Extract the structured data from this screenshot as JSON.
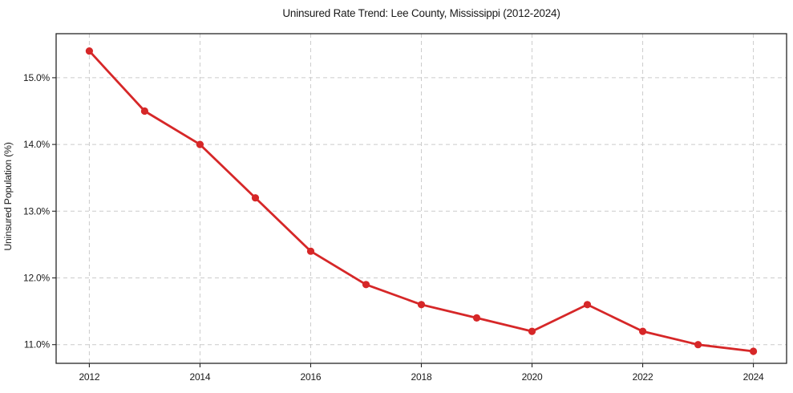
{
  "chart_data": {
    "type": "line",
    "title": "Uninsured Rate Trend: Lee County, Mississippi (2012-2024)",
    "xlabel": "",
    "ylabel": "Uninsured Population (%)",
    "x": [
      2012,
      2013,
      2014,
      2015,
      2016,
      2017,
      2018,
      2019,
      2020,
      2021,
      2022,
      2023,
      2024
    ],
    "values": [
      15.4,
      14.5,
      14.0,
      13.2,
      12.4,
      11.9,
      11.6,
      11.4,
      11.2,
      11.6,
      11.2,
      11.0,
      10.9
    ],
    "xlim": [
      2011.4,
      2024.6
    ],
    "ylim": [
      10.72,
      15.66
    ],
    "xticks": [
      2012,
      2014,
      2016,
      2018,
      2020,
      2022,
      2024
    ],
    "xtick_labels": [
      "2012",
      "2014",
      "2016",
      "2018",
      "2020",
      "2022",
      "2024"
    ],
    "yticks": [
      11.0,
      12.0,
      13.0,
      14.0,
      15.0
    ],
    "ytick_labels": [
      "11.0%",
      "12.0%",
      "13.0%",
      "14.0%",
      "15.0%"
    ],
    "grid": true,
    "legend": null,
    "line_color": "#d62728",
    "marker": "circle",
    "grid_color": "#cccccc",
    "spine_color": "#262626",
    "background_color": "#ffffff"
  }
}
